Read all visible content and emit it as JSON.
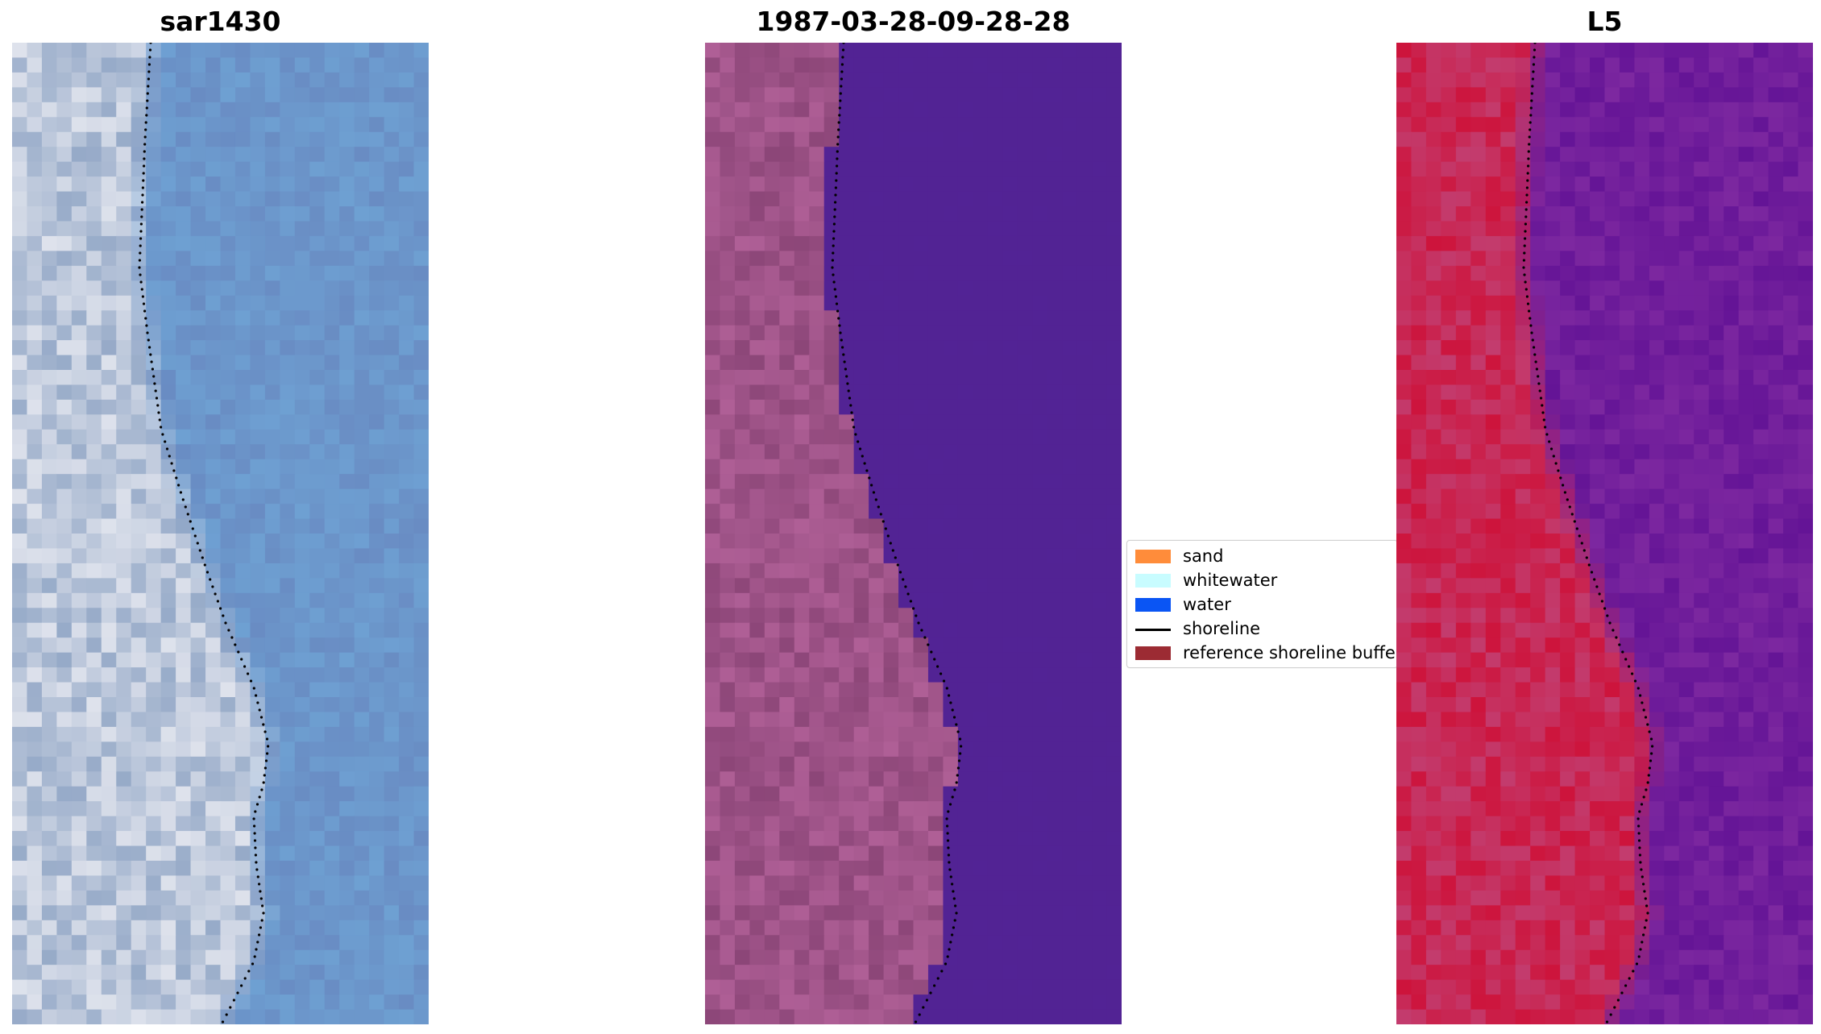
{
  "panels": [
    {
      "title": "sar1430",
      "style": "rgb"
    },
    {
      "title": "1987-03-28-09-28-28",
      "style": "classified"
    },
    {
      "title": "L5",
      "style": "index"
    }
  ],
  "legend": {
    "items": [
      {
        "label": "sand",
        "kind": "patch",
        "color": "#ff8c3a"
      },
      {
        "label": "whitewater",
        "kind": "patch",
        "color": "#c8fcff"
      },
      {
        "label": "water",
        "kind": "patch",
        "color": "#0a55f4"
      },
      {
        "label": "shoreline",
        "kind": "line",
        "color": "#000000"
      },
      {
        "label": "reference shoreline buffer",
        "kind": "patch",
        "color": "#9c2b33"
      }
    ]
  },
  "colors": {
    "sar_water": "#6a9ccc",
    "sar_land": "#d8dde8",
    "class_water": "#522394",
    "class_land": "#a2548e",
    "index_water": "#7a2aa0",
    "index_land": "#c81f4a",
    "shoreline": "#000000"
  }
}
